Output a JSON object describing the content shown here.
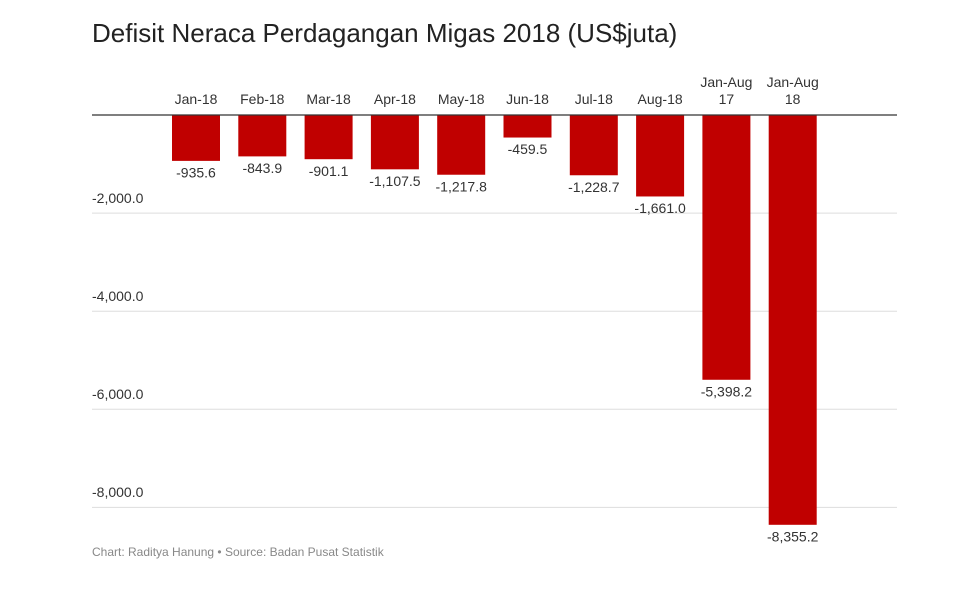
{
  "chart_data": {
    "type": "bar",
    "title": "Defisit Neraca Perdagangan Migas 2018 (US$juta)",
    "footer": "Chart: Raditya Hanung • Source: Badan Pusat Statistik",
    "categories": [
      "Jan-18",
      "Feb-18",
      "Mar-18",
      "Apr-18",
      "May-18",
      "Jun-18",
      "Jul-18",
      "Aug-18",
      "Jan-Aug 17",
      "Jan-Aug 18"
    ],
    "values": [
      -935.6,
      -843.9,
      -901.1,
      -1107.5,
      -1217.8,
      -459.5,
      -1228.7,
      -1661.0,
      -5398.2,
      -8355.2
    ],
    "value_labels": [
      "-935.6",
      "-843.9",
      "-901.1",
      "-1,107.5",
      "-1,217.8",
      "-459.5",
      "-1,228.7",
      "-1,661.0",
      "-5,398.2",
      "-8,355.2"
    ],
    "color": "#c00000",
    "ylim": [
      -8400,
      0
    ],
    "yticks": [
      {
        "value": -2000,
        "label": "-2,000.0"
      },
      {
        "value": -4000,
        "label": "-4,000.0"
      },
      {
        "value": -6000,
        "label": "-6,000.0"
      },
      {
        "value": -8000,
        "label": "-8,000.0"
      }
    ],
    "grid": true
  }
}
